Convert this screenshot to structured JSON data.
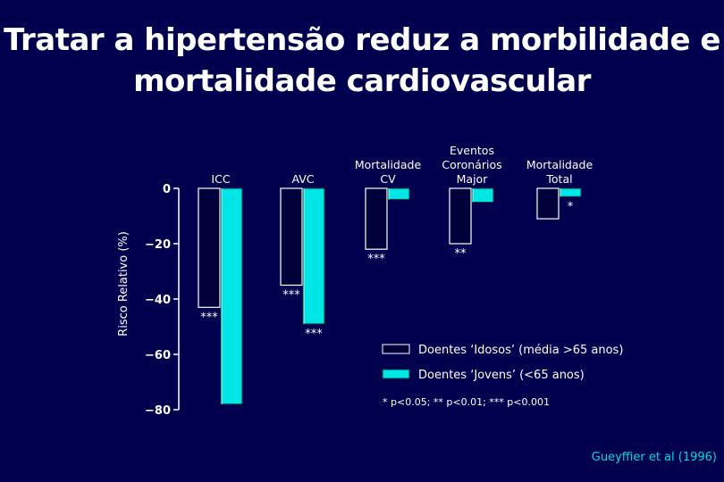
{
  "title_line1": "Tratar a hipertensão reduz a morbilidade e",
  "title_line2": "mortalidade cardiovascular",
  "source": "Gueyffier et al (1996)",
  "footnote": "* p<0.05; ** p<0.01; *** p<0.001",
  "colors": {
    "background": "#00004f",
    "idosos": "#00003a",
    "jovens": "#00e6e6",
    "text": "#ffffff"
  },
  "chart_data": {
    "type": "bar",
    "ylabel": "Risco Relativo (%)",
    "ylim": [
      -80,
      0
    ],
    "yticks": [
      0,
      -20,
      -40,
      -60,
      -80
    ],
    "yticklabels": [
      "0",
      "−20",
      "−40",
      "−60",
      "−80"
    ],
    "categories": [
      [
        "ICC"
      ],
      [
        "AVC"
      ],
      [
        "Mortalidade",
        "CV"
      ],
      [
        "Eventos",
        "Coronários",
        "Major"
      ],
      [
        "Mortalidade",
        "Total"
      ]
    ],
    "series": [
      {
        "name": "Doentes ‘Idosos’ (média >65 anos)",
        "values": [
          -43,
          -35,
          -22,
          -20,
          -11
        ],
        "significance": [
          "***",
          "***",
          "***",
          "**",
          ""
        ]
      },
      {
        "name": "Doentes ‘Jovens’ (<65 anos)",
        "values": [
          -78,
          -49,
          -4,
          -5,
          -3
        ],
        "significance": [
          "",
          "***",
          "",
          "",
          "*"
        ]
      }
    ]
  }
}
